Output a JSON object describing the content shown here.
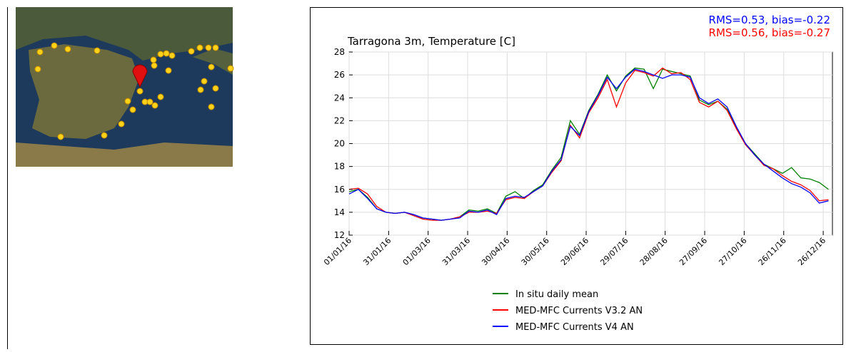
{
  "chart_data": {
    "type": "line",
    "title": "Tarragona 3m, Temperature [C]",
    "annotations": [
      {
        "text": "RMS=0.53, bias=-0.22",
        "color": "#0000ff"
      },
      {
        "text": "RMS=0.56, bias=-0.27",
        "color": "#ff0000"
      }
    ],
    "x": [
      "01/01/16",
      "08/01/16",
      "15/01/16",
      "22/01/16",
      "29/01/16",
      "05/02/16",
      "12/02/16",
      "19/02/16",
      "26/02/16",
      "04/03/16",
      "11/03/16",
      "18/03/16",
      "25/03/16",
      "01/04/16",
      "08/04/16",
      "15/04/16",
      "22/04/16",
      "29/04/16",
      "06/05/16",
      "13/05/16",
      "20/05/16",
      "27/05/16",
      "03/06/16",
      "10/06/16",
      "17/06/16",
      "24/06/16",
      "01/07/16",
      "08/07/16",
      "15/07/16",
      "22/07/16",
      "29/07/16",
      "05/08/16",
      "12/08/16",
      "19/08/16",
      "26/08/16",
      "02/09/16",
      "09/09/16",
      "16/09/16",
      "23/09/16",
      "30/09/16",
      "07/10/16",
      "14/10/16",
      "21/10/16",
      "28/10/16",
      "04/11/16",
      "11/11/16",
      "18/11/16",
      "25/11/16",
      "02/12/16",
      "09/12/16",
      "16/12/16",
      "23/12/16",
      "30/12/16"
    ],
    "series": [
      {
        "name": "In situ daily mean",
        "color": "#008000",
        "values": [
          15.8,
          16.0,
          15.3,
          14.3,
          14.0,
          13.9,
          14.0,
          13.8,
          13.5,
          13.4,
          13.3,
          13.4,
          13.6,
          14.2,
          14.1,
          14.3,
          13.9,
          15.4,
          15.8,
          15.2,
          15.9,
          16.4,
          17.7,
          18.8,
          22.0,
          20.8,
          22.9,
          24.3,
          26.0,
          24.6,
          25.9,
          26.6,
          26.5,
          24.8,
          26.5,
          26.3,
          26.1,
          25.9,
          23.8,
          23.4,
          23.7,
          23.0,
          21.4,
          20.0,
          19.1,
          18.2,
          17.8,
          17.4,
          17.9,
          17.0,
          16.9,
          16.6,
          16.0
        ]
      },
      {
        "name": "MED-MFC Currents V3.2 AN",
        "color": "#ff0000",
        "values": [
          16.0,
          16.1,
          15.6,
          14.5,
          14.0,
          13.9,
          14.0,
          13.7,
          13.4,
          13.3,
          13.3,
          13.4,
          13.6,
          14.0,
          14.0,
          14.1,
          13.9,
          15.1,
          15.3,
          15.2,
          15.8,
          16.3,
          17.5,
          18.5,
          21.6,
          20.5,
          22.7,
          24.0,
          25.6,
          23.2,
          25.3,
          26.4,
          26.2,
          25.9,
          26.6,
          26.1,
          26.2,
          25.6,
          23.6,
          23.2,
          23.7,
          22.9,
          21.3,
          19.9,
          19.0,
          18.1,
          17.8,
          17.2,
          16.7,
          16.4,
          15.9,
          15.0,
          15.1
        ]
      },
      {
        "name": "MED-MFC Currents V4 AN",
        "color": "#0000ff",
        "values": [
          15.6,
          16.0,
          15.2,
          14.3,
          14.0,
          13.9,
          14.0,
          13.8,
          13.5,
          13.4,
          13.3,
          13.4,
          13.5,
          14.1,
          14.0,
          14.2,
          13.8,
          15.2,
          15.4,
          15.3,
          15.8,
          16.3,
          17.6,
          18.6,
          21.5,
          20.7,
          22.8,
          24.2,
          25.8,
          24.8,
          25.8,
          26.5,
          26.3,
          26.0,
          25.7,
          26.0,
          26.0,
          25.8,
          24.0,
          23.5,
          23.9,
          23.2,
          21.5,
          20.0,
          19.0,
          18.2,
          17.6,
          17.0,
          16.5,
          16.2,
          15.7,
          14.8,
          15.0
        ]
      }
    ],
    "xlim": [
      "01/01/16",
      "02/01/17"
    ],
    "xticks": [
      "01/01/16",
      "31/01/16",
      "01/03/16",
      "31/03/16",
      "30/04/16",
      "30/05/16",
      "29/06/16",
      "29/07/16",
      "28/08/16",
      "27/09/16",
      "27/10/16",
      "26/11/16",
      "26/12/16"
    ],
    "ylim": [
      12,
      28
    ],
    "yticks": [
      12,
      14,
      16,
      18,
      20,
      22,
      24,
      26,
      28
    ],
    "grid": true,
    "legend": "bottom"
  }
}
